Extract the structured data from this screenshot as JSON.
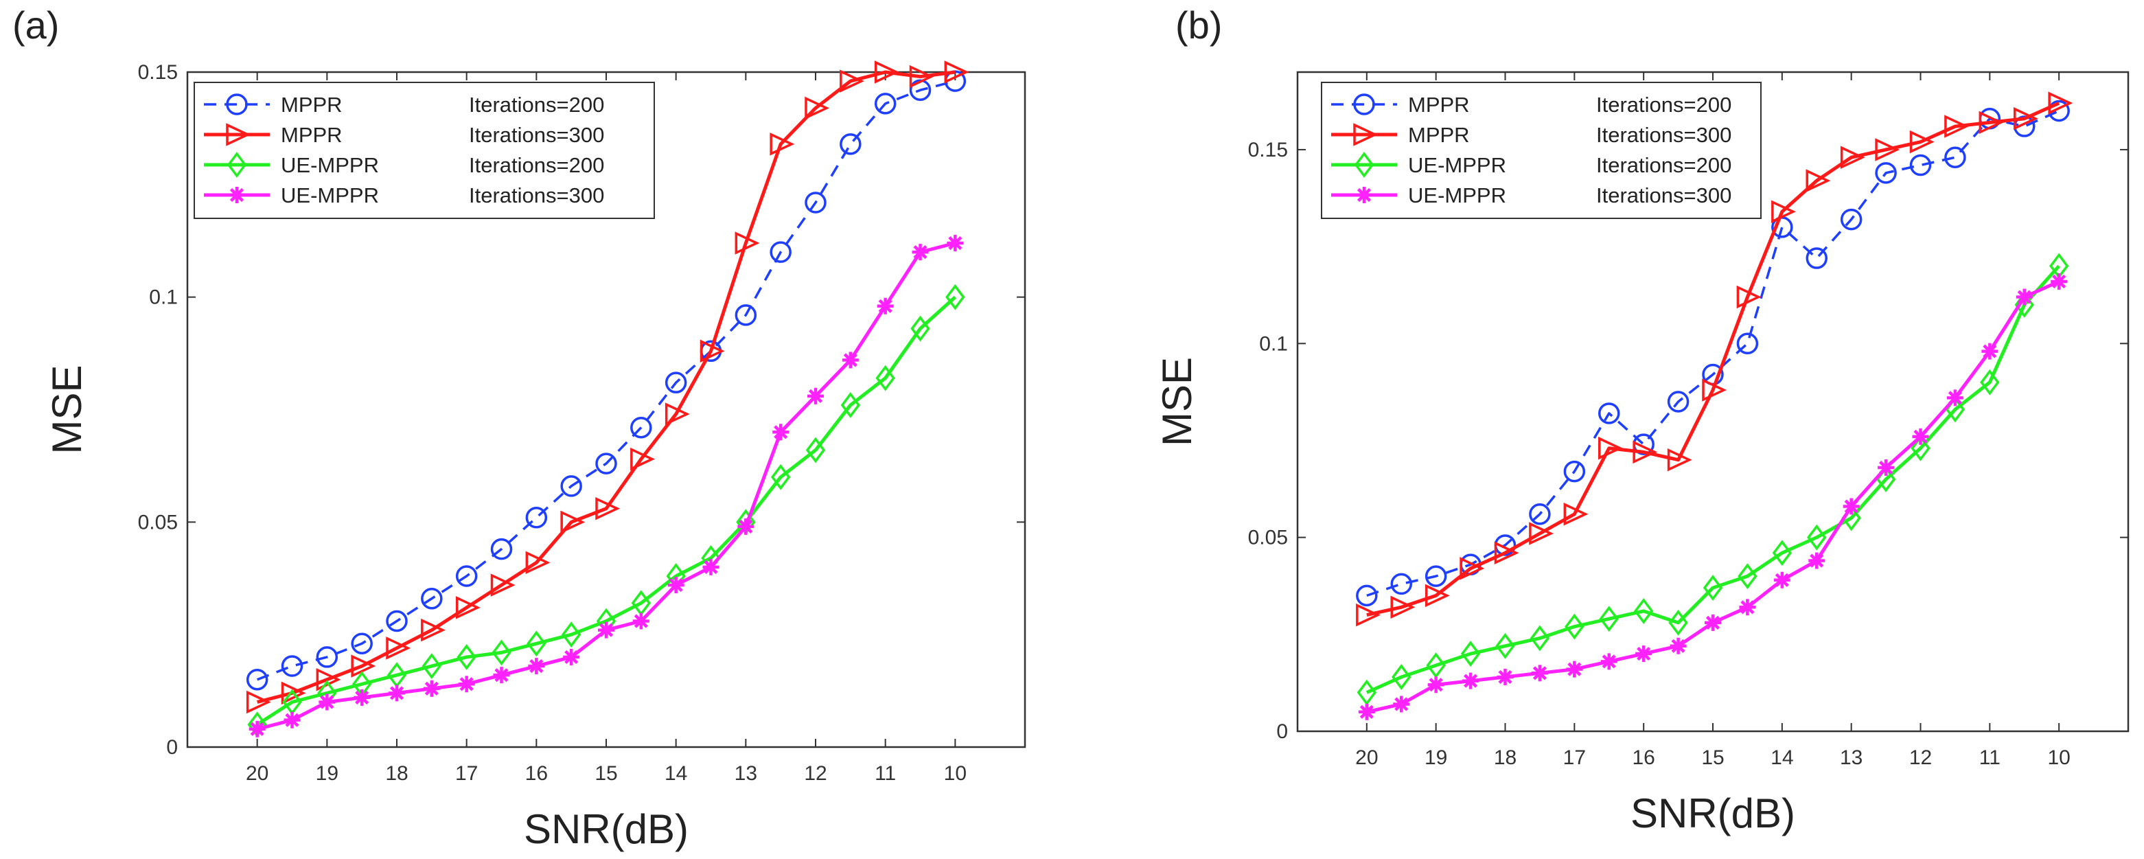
{
  "chart_data": [
    {
      "panel": "(a)",
      "type": "line",
      "xlabel": "SNR(dB)",
      "ylabel": "MSE",
      "xlim": [
        21,
        9
      ],
      "ylim": [
        0,
        0.15
      ],
      "x_ticks": [
        20,
        19,
        18,
        17,
        16,
        15,
        14,
        13,
        12,
        11,
        10
      ],
      "y_ticks": [
        0,
        0.05,
        0.1,
        0.15
      ],
      "y_tick_labels": [
        "0",
        "0.05",
        "0.1",
        "0.15"
      ],
      "legend": {
        "placement": "top-left"
      },
      "x": [
        20,
        19.5,
        19,
        18.5,
        18,
        17.5,
        17,
        16.5,
        16,
        15.5,
        15,
        14.5,
        14,
        13.5,
        13,
        12.5,
        12,
        11.5,
        11,
        10.5,
        10
      ],
      "series": [
        {
          "name": "MPPR",
          "label": "Iterations=200",
          "color": "#1f3fff",
          "marker": "circle",
          "dash": true,
          "values": [
            0.015,
            0.018,
            0.02,
            0.023,
            0.028,
            0.033,
            0.038,
            0.044,
            0.051,
            0.058,
            0.063,
            0.071,
            0.081,
            0.088,
            0.096,
            0.11,
            0.121,
            0.134,
            0.143,
            0.146,
            0.148
          ]
        },
        {
          "name": "MPPR",
          "label": "Iterations=300",
          "color": "#ff1a1a",
          "marker": "triangle-right",
          "dash": false,
          "values": [
            0.01,
            0.012,
            0.015,
            0.018,
            0.022,
            0.026,
            0.031,
            0.036,
            0.041,
            0.05,
            0.053,
            0.064,
            0.074,
            0.088,
            0.112,
            0.134,
            0.142,
            0.148,
            0.15,
            0.149,
            0.15
          ]
        },
        {
          "name": "UE-MPPR",
          "label": "Iterations=200",
          "color": "#22ee22",
          "marker": "diamond",
          "dash": false,
          "values": [
            0.005,
            0.01,
            0.012,
            0.014,
            0.016,
            0.018,
            0.02,
            0.021,
            0.023,
            0.025,
            0.028,
            0.032,
            0.038,
            0.042,
            0.05,
            0.06,
            0.066,
            0.076,
            0.082,
            0.093,
            0.1
          ]
        },
        {
          "name": "UE-MPPR",
          "label": "Iterations=300",
          "color": "#ff22ff",
          "marker": "star",
          "dash": false,
          "values": [
            0.004,
            0.006,
            0.01,
            0.011,
            0.012,
            0.013,
            0.014,
            0.016,
            0.018,
            0.02,
            0.026,
            0.028,
            0.036,
            0.04,
            0.049,
            0.07,
            0.078,
            0.086,
            0.098,
            0.11,
            0.112
          ]
        }
      ]
    },
    {
      "panel": "(b)",
      "type": "line",
      "xlabel": "SNR(dB)",
      "ylabel": "MSE",
      "xlim": [
        21,
        9
      ],
      "ylim": [
        0,
        0.17
      ],
      "x_ticks": [
        20,
        19,
        18,
        17,
        16,
        15,
        14,
        13,
        12,
        11,
        10
      ],
      "y_ticks": [
        0,
        0.05,
        0.1,
        0.15
      ],
      "y_tick_labels": [
        "0",
        "0.05",
        "0.1",
        "0.15"
      ],
      "legend": {
        "placement": "top-left"
      },
      "x": [
        20,
        19.5,
        19,
        18.5,
        18,
        17.5,
        17,
        16.5,
        16,
        15.5,
        15,
        14.5,
        14,
        13.5,
        13,
        12.5,
        12,
        11.5,
        11,
        10.5,
        10
      ],
      "series": [
        {
          "name": "MPPR",
          "label": "Iterations=200",
          "color": "#1f3fff",
          "marker": "circle",
          "dash": true,
          "values": [
            0.035,
            0.038,
            0.04,
            0.043,
            0.048,
            0.056,
            0.067,
            0.082,
            0.074,
            0.085,
            0.092,
            0.1,
            0.13,
            0.122,
            0.132,
            0.144,
            0.146,
            0.148,
            0.158,
            0.156,
            0.16
          ]
        },
        {
          "name": "MPPR",
          "label": "Iterations=300",
          "color": "#ff1a1a",
          "marker": "triangle-right",
          "dash": false,
          "values": [
            0.03,
            0.032,
            0.035,
            0.042,
            0.046,
            0.051,
            0.056,
            0.073,
            0.072,
            0.07,
            0.088,
            0.112,
            0.134,
            0.142,
            0.148,
            0.15,
            0.152,
            0.156,
            0.157,
            0.158,
            0.162
          ]
        },
        {
          "name": "UE-MPPR",
          "label": "Iterations=200",
          "color": "#22ee22",
          "marker": "diamond",
          "dash": false,
          "values": [
            0.01,
            0.014,
            0.017,
            0.02,
            0.022,
            0.024,
            0.027,
            0.029,
            0.031,
            0.028,
            0.037,
            0.04,
            0.046,
            0.05,
            0.055,
            0.065,
            0.073,
            0.083,
            0.09,
            0.11,
            0.12
          ]
        },
        {
          "name": "UE-MPPR",
          "label": "Iterations=300",
          "color": "#ff22ff",
          "marker": "star",
          "dash": false,
          "values": [
            0.005,
            0.007,
            0.012,
            0.013,
            0.014,
            0.015,
            0.016,
            0.018,
            0.02,
            0.022,
            0.028,
            0.032,
            0.039,
            0.044,
            0.058,
            0.068,
            0.076,
            0.086,
            0.098,
            0.112,
            0.116
          ]
        }
      ]
    }
  ]
}
